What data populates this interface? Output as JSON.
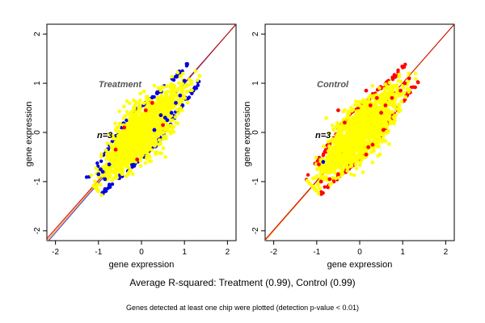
{
  "captions": {
    "average_r_squared": "Average R-squared: Treatment (0.99), Control (0.99)",
    "detection": "Genes detected at least one chip were plotted (detection p-value < 0.01)"
  },
  "colors": {
    "background": "#ffffff",
    "axis": "#000000",
    "title_text": "#555555",
    "points_primary": "#ffff00",
    "points_secondary_treatment": "#0000dd",
    "points_secondary_control": "#ff0000",
    "line_orange": "#ff8c00",
    "line_red": "#cc0000",
    "line_blue": "#3333cc"
  },
  "chart_data": [
    {
      "type": "scatter",
      "title": "Treatment",
      "annotation": "n=3",
      "xlabel": "gene expression",
      "ylabel": "gene expression",
      "xlim": [
        -2.2,
        2.2
      ],
      "ylim": [
        -2.2,
        2.2
      ],
      "xticks": [
        -2,
        -1,
        0,
        1,
        2
      ],
      "yticks": [
        -2,
        -1,
        0,
        1,
        2
      ],
      "grid": false,
      "point_cloud": {
        "x_range": [
          -1.1,
          1.25
        ],
        "y_range": [
          -1.1,
          1.25
        ],
        "center": [
          0,
          0
        ],
        "primary_color": "yellow",
        "secondary_color": "blue"
      },
      "highlight_points": [
        {
          "x": -0.95,
          "y": -0.75,
          "color": "blue"
        },
        {
          "x": -0.9,
          "y": -0.8,
          "color": "blue"
        },
        {
          "x": -1.0,
          "y": -0.85,
          "color": "blue"
        },
        {
          "x": -0.85,
          "y": -0.95,
          "color": "blue"
        },
        {
          "x": -0.75,
          "y": -0.65,
          "color": "blue"
        },
        {
          "x": 0.55,
          "y": 0.3,
          "color": "blue"
        },
        {
          "x": 0.6,
          "y": 0.25,
          "color": "blue"
        },
        {
          "x": 0.7,
          "y": 0.4,
          "color": "blue"
        },
        {
          "x": 0.8,
          "y": 0.6,
          "color": "blue"
        },
        {
          "x": 0.9,
          "y": 0.75,
          "color": "blue"
        },
        {
          "x": 1.0,
          "y": 1.05,
          "color": "blue"
        },
        {
          "x": 0.45,
          "y": 0.35,
          "color": "blue"
        },
        {
          "x": 0.3,
          "y": 0.05,
          "color": "blue"
        },
        {
          "x": -0.1,
          "y": -0.55,
          "color": "red"
        },
        {
          "x": 0.1,
          "y": 0.45,
          "color": "red"
        },
        {
          "x": 0.25,
          "y": 0.6,
          "color": "red"
        },
        {
          "x": 0.5,
          "y": 0.15,
          "color": "red"
        },
        {
          "x": -0.4,
          "y": 0.1,
          "color": "red"
        },
        {
          "x": -0.6,
          "y": -0.35,
          "color": "red"
        }
      ],
      "reference_lines": [
        {
          "slope": 1,
          "intercept": 0,
          "color": "orange"
        },
        {
          "slope": 1.01,
          "intercept": -0.02,
          "color": "blue"
        },
        {
          "slope": 0.99,
          "intercept": 0.02,
          "color": "red"
        }
      ]
    },
    {
      "type": "scatter",
      "title": "Control",
      "annotation": "n=3",
      "xlabel": "gene expression",
      "ylabel": "gene expression",
      "xlim": [
        -2.2,
        2.2
      ],
      "ylim": [
        -2.2,
        2.2
      ],
      "xticks": [
        -2,
        -1,
        0,
        1,
        2
      ],
      "yticks": [
        -2,
        -1,
        0,
        1,
        2
      ],
      "grid": false,
      "point_cloud": {
        "x_range": [
          -1.1,
          1.25
        ],
        "y_range": [
          -1.1,
          1.25
        ],
        "center": [
          0,
          0
        ],
        "primary_color": "yellow",
        "secondary_color": "red"
      },
      "highlight_points": [
        {
          "x": -0.5,
          "y": 0.45,
          "color": "red"
        },
        {
          "x": -0.35,
          "y": 0.2,
          "color": "red"
        },
        {
          "x": 0.15,
          "y": 0.85,
          "color": "red"
        },
        {
          "x": 0.25,
          "y": 0.55,
          "color": "red"
        },
        {
          "x": 0.4,
          "y": 0.7,
          "color": "red"
        },
        {
          "x": 0.5,
          "y": 0.4,
          "color": "red"
        },
        {
          "x": 0.6,
          "y": 0.55,
          "color": "red"
        },
        {
          "x": 0.75,
          "y": 0.7,
          "color": "red"
        },
        {
          "x": 0.2,
          "y": -0.3,
          "color": "red"
        },
        {
          "x": 0.3,
          "y": -0.25,
          "color": "red"
        },
        {
          "x": 0.15,
          "y": -0.45,
          "color": "red"
        },
        {
          "x": -0.5,
          "y": -0.85,
          "color": "red"
        },
        {
          "x": -0.7,
          "y": -0.95,
          "color": "red"
        },
        {
          "x": -0.9,
          "y": -1.0,
          "color": "red"
        },
        {
          "x": -0.95,
          "y": -0.65,
          "color": "red"
        },
        {
          "x": 0.95,
          "y": 0.85,
          "color": "red"
        },
        {
          "x": 1.05,
          "y": 1.0,
          "color": "red"
        },
        {
          "x": 1.15,
          "y": 1.1,
          "color": "red"
        },
        {
          "x": 0.55,
          "y": 0.05,
          "color": "red"
        },
        {
          "x": -0.85,
          "y": -0.6,
          "color": "blue"
        }
      ],
      "reference_lines": [
        {
          "slope": 1,
          "intercept": 0,
          "color": "orange"
        },
        {
          "slope": 0.995,
          "intercept": 0.01,
          "color": "red"
        }
      ]
    }
  ]
}
